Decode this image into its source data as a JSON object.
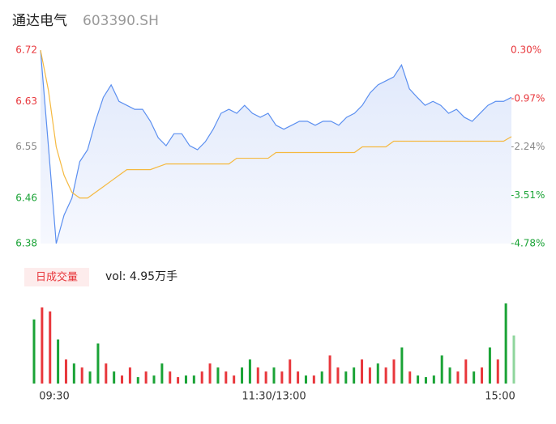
{
  "chart_data": {
    "type": "intraday",
    "title": "通达电气",
    "code": "603390.SH",
    "legend_label": "日成交量",
    "volume_text": "vol: 4.95万手",
    "x": [
      0,
      4,
      8,
      12,
      16,
      20,
      24,
      28,
      32,
      36,
      40,
      44,
      48,
      52,
      56,
      60,
      64,
      68,
      72,
      76,
      80,
      84,
      88,
      92,
      96,
      100,
      104,
      108,
      112,
      116,
      120,
      124,
      128,
      132,
      136,
      140,
      144,
      148,
      152,
      156,
      160,
      164,
      168,
      172,
      176,
      180,
      184,
      188,
      192,
      196,
      200,
      204,
      208,
      212,
      216,
      220,
      224,
      228,
      232,
      236,
      240
    ],
    "xlim": [
      0,
      240
    ],
    "xticks": [
      {
        "value": 0,
        "label": "09:30"
      },
      {
        "value": 120,
        "label": "11:30/13:00"
      },
      {
        "value": 240,
        "label": "15:00"
      }
    ],
    "series": [
      {
        "name": "price",
        "color": "#5b8ff0",
        "values": [
          6.72,
          6.552,
          6.38,
          6.43,
          6.46,
          6.524,
          6.545,
          6.595,
          6.637,
          6.659,
          6.63,
          6.623,
          6.616,
          6.616,
          6.595,
          6.566,
          6.552,
          6.573,
          6.573,
          6.552,
          6.545,
          6.559,
          6.581,
          6.609,
          6.616,
          6.609,
          6.623,
          6.609,
          6.602,
          6.609,
          6.588,
          6.581,
          6.588,
          6.595,
          6.595,
          6.588,
          6.595,
          6.595,
          6.588,
          6.602,
          6.609,
          6.623,
          6.645,
          6.659,
          6.666,
          6.673,
          6.694,
          6.652,
          6.637,
          6.623,
          6.63,
          6.623,
          6.609,
          6.616,
          6.602,
          6.595,
          6.609,
          6.623,
          6.63,
          6.63,
          6.637
        ]
      },
      {
        "name": "average",
        "color": "#f5b940",
        "values": [
          6.72,
          6.65,
          6.55,
          6.5,
          6.47,
          6.46,
          6.46,
          6.47,
          6.48,
          6.49,
          6.5,
          6.51,
          6.51,
          6.51,
          6.51,
          6.515,
          6.52,
          6.52,
          6.52,
          6.52,
          6.52,
          6.52,
          6.52,
          6.52,
          6.52,
          6.53,
          6.53,
          6.53,
          6.53,
          6.53,
          6.54,
          6.54,
          6.54,
          6.54,
          6.54,
          6.54,
          6.54,
          6.54,
          6.54,
          6.54,
          6.54,
          6.55,
          6.55,
          6.55,
          6.55,
          6.56,
          6.56,
          6.56,
          6.56,
          6.56,
          6.56,
          6.56,
          6.56,
          6.56,
          6.56,
          6.56,
          6.56,
          6.56,
          6.56,
          6.56,
          6.568
        ]
      }
    ],
    "ylim": [
      6.38,
      6.72
    ],
    "yticks": [
      6.72,
      6.63,
      6.55,
      6.46,
      6.38
    ],
    "ytick_colors": [
      "#e8373c",
      "#e8373c",
      "#888888",
      "#1aa336",
      "#1aa336"
    ],
    "y2lim": [
      -4.78,
      0.3
    ],
    "y2ticks": [
      {
        "value": 0.3,
        "label": "0.30%"
      },
      {
        "value": -0.97,
        "label": "-0.97%"
      },
      {
        "value": -2.24,
        "label": "-2.24%"
      },
      {
        "value": -3.51,
        "label": "-3.51%"
      },
      {
        "value": -4.78,
        "label": "-4.78%"
      }
    ],
    "volume": [
      80,
      95,
      90,
      55,
      30,
      25,
      20,
      15,
      50,
      25,
      15,
      10,
      20,
      8,
      15,
      10,
      25,
      15,
      8,
      10,
      10,
      15,
      25,
      20,
      15,
      10,
      20,
      30,
      20,
      15,
      20,
      15,
      30,
      15,
      10,
      10,
      15,
      35,
      20,
      15,
      20,
      30,
      20,
      25,
      20,
      30,
      45,
      15,
      10,
      8,
      10,
      35,
      20,
      15,
      30,
      15,
      20,
      45,
      30,
      100,
      60
    ],
    "volume_colors": [
      "#1aa336",
      "#e8373c",
      "#e8373c",
      "#1aa336",
      "#e8373c",
      "#1aa336",
      "#e8373c",
      "#1aa336",
      "#1aa336",
      "#e8373c",
      "#1aa336",
      "#e8373c",
      "#e8373c",
      "#1aa336",
      "#e8373c",
      "#1aa336",
      "#1aa336",
      "#e8373c",
      "#e8373c",
      "#1aa336",
      "#1aa336",
      "#e8373c",
      "#e8373c",
      "#1aa336",
      "#e8373c",
      "#e8373c",
      "#1aa336",
      "#1aa336",
      "#e8373c",
      "#e8373c",
      "#1aa336",
      "#e8373c",
      "#e8373c",
      "#e8373c",
      "#1aa336",
      "#e8373c",
      "#1aa336",
      "#e8373c",
      "#e8373c",
      "#1aa336",
      "#1aa336",
      "#e8373c",
      "#e8373c",
      "#1aa336",
      "#e8373c",
      "#e8373c",
      "#1aa336",
      "#e8373c",
      "#1aa336",
      "#1aa336",
      "#1aa336",
      "#1aa336",
      "#1aa336",
      "#e8373c",
      "#e8373c",
      "#1aa336",
      "#e8373c",
      "#1aa336",
      "#e8373c",
      "#1aa336",
      "#8fd69c"
    ],
    "volume_ylim": [
      0,
      105
    ]
  }
}
